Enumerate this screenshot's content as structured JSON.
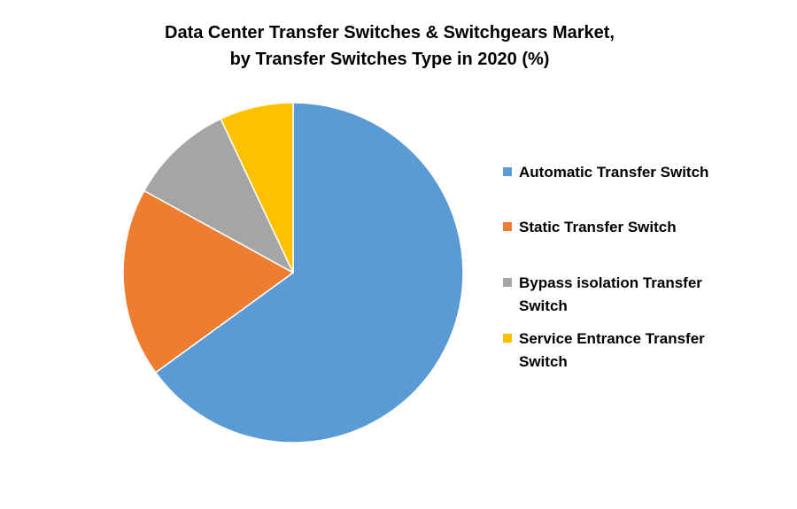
{
  "chart_data": {
    "type": "pie",
    "title_lines": [
      "Data Center Transfer Switches & Switchgears Market,",
      "by Transfer Switches Type in 2020 (%)"
    ],
    "categories": [
      "Automatic Transfer Switch",
      "Static Transfer Switch",
      "Bypass isolation Transfer Switch",
      "Service Entrance Transfer Switch"
    ],
    "values": [
      65,
      18,
      10,
      7
    ],
    "unit": "%",
    "colors": [
      "#5B9BD5",
      "#ED7D31",
      "#A5A5A5",
      "#FFC000"
    ],
    "legend_position": "right",
    "legend": [
      {
        "lines": [
          "Automatic Transfer Switch"
        ],
        "color": "#5B9BD5"
      },
      {
        "lines": [
          "Static Transfer Switch"
        ],
        "color": "#ED7D31"
      },
      {
        "lines": [
          "Bypass isolation Transfer",
          "Switch"
        ],
        "color": "#A5A5A5"
      },
      {
        "lines": [
          "Service Entrance Transfer",
          "Switch"
        ],
        "color": "#FFC000"
      }
    ]
  }
}
